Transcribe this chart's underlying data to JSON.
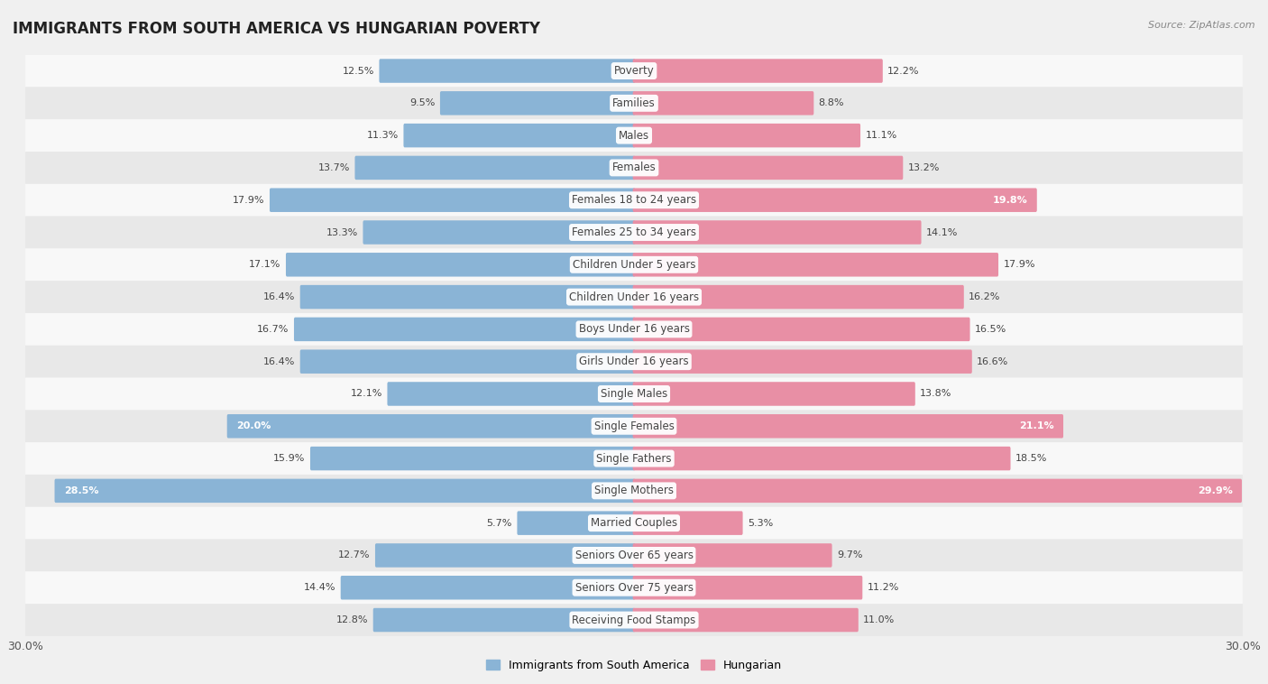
{
  "title": "IMMIGRANTS FROM SOUTH AMERICA VS HUNGARIAN POVERTY",
  "source": "Source: ZipAtlas.com",
  "categories": [
    "Poverty",
    "Families",
    "Males",
    "Females",
    "Females 18 to 24 years",
    "Females 25 to 34 years",
    "Children Under 5 years",
    "Children Under 16 years",
    "Boys Under 16 years",
    "Girls Under 16 years",
    "Single Males",
    "Single Females",
    "Single Fathers",
    "Single Mothers",
    "Married Couples",
    "Seniors Over 65 years",
    "Seniors Over 75 years",
    "Receiving Food Stamps"
  ],
  "left_values": [
    12.5,
    9.5,
    11.3,
    13.7,
    17.9,
    13.3,
    17.1,
    16.4,
    16.7,
    16.4,
    12.1,
    20.0,
    15.9,
    28.5,
    5.7,
    12.7,
    14.4,
    12.8
  ],
  "right_values": [
    12.2,
    8.8,
    11.1,
    13.2,
    19.8,
    14.1,
    17.9,
    16.2,
    16.5,
    16.6,
    13.8,
    21.1,
    18.5,
    29.9,
    5.3,
    9.7,
    11.2,
    11.0
  ],
  "left_color": "#8ab4d6",
  "right_color": "#e88fa5",
  "left_label": "Immigrants from South America",
  "right_label": "Hungarian",
  "background_color": "#f0f0f0",
  "row_color_odd": "#f8f8f8",
  "row_color_even": "#e8e8e8",
  "axis_max": 30.0,
  "title_fontsize": 12,
  "label_fontsize": 8.5,
  "value_fontsize": 8,
  "inside_value_threshold": 19.0
}
